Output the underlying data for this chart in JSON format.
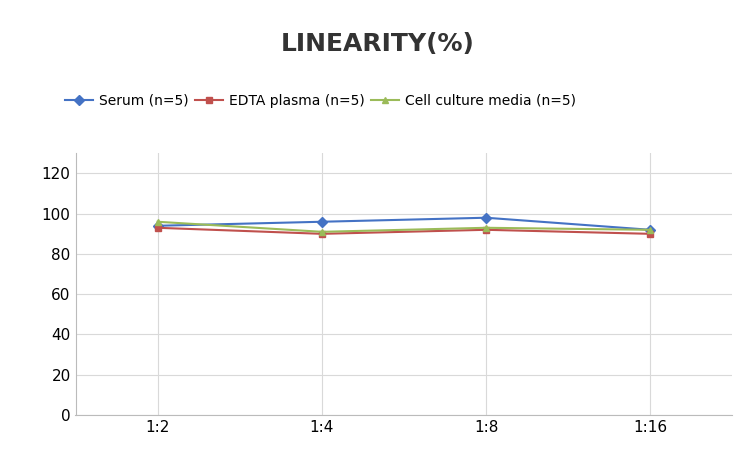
{
  "title": "LINEARITY(%)",
  "x_labels": [
    "1:2",
    "1:4",
    "1:8",
    "1:16"
  ],
  "x_positions": [
    0,
    1,
    2,
    3
  ],
  "series": [
    {
      "label": "Serum (n=5)",
      "values": [
        94,
        96,
        98,
        92
      ],
      "color": "#4472C4",
      "marker": "D",
      "markersize": 5
    },
    {
      "label": "EDTA plasma (n=5)",
      "values": [
        93,
        90,
        92,
        90
      ],
      "color": "#C0504D",
      "marker": "s",
      "markersize": 5
    },
    {
      "label": "Cell culture media (n=5)",
      "values": [
        96,
        91,
        93,
        92
      ],
      "color": "#9BBB59",
      "marker": "^",
      "markersize": 5
    }
  ],
  "ylim": [
    0,
    130
  ],
  "yticks": [
    0,
    20,
    40,
    60,
    80,
    100,
    120
  ],
  "grid_color": "#D9D9D9",
  "background_color": "#FFFFFF",
  "title_fontsize": 18,
  "legend_fontsize": 10,
  "tick_fontsize": 11
}
